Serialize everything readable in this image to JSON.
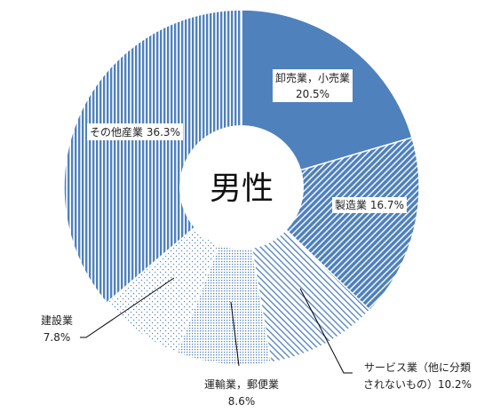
{
  "chart_data": {
    "type": "pie",
    "variant": "doughnut",
    "center_label": "男性",
    "start": "12 o'clock, clockwise",
    "categories": [
      "卸売業，小売業",
      "製造業",
      "サービス業（他に分類されないもの）",
      "運輸業，郵便業",
      "建設業",
      "その他産業"
    ],
    "values": [
      20.5,
      16.7,
      10.2,
      8.6,
      7.8,
      36.3
    ],
    "unit": "%",
    "label_lines": [
      [
        "卸売業，小売業",
        "20.5%"
      ],
      [
        "製造業 16.7%"
      ],
      [
        "サービス業（他に分類",
        "されないもの）10.2%"
      ],
      [
        "運輸業，郵便業",
        "8.6%"
      ],
      [
        "建設業",
        "7.8%"
      ],
      [
        "その他産業 36.3%"
      ]
    ],
    "fills": [
      "solid",
      "diagonal-hatch",
      "fine-diagonal-hatch",
      "dots",
      "sparse-dots",
      "vertical-stripes"
    ],
    "colors": {
      "base": "#4f81bd",
      "background": "#ffffff",
      "outline": "#ffffff"
    }
  }
}
